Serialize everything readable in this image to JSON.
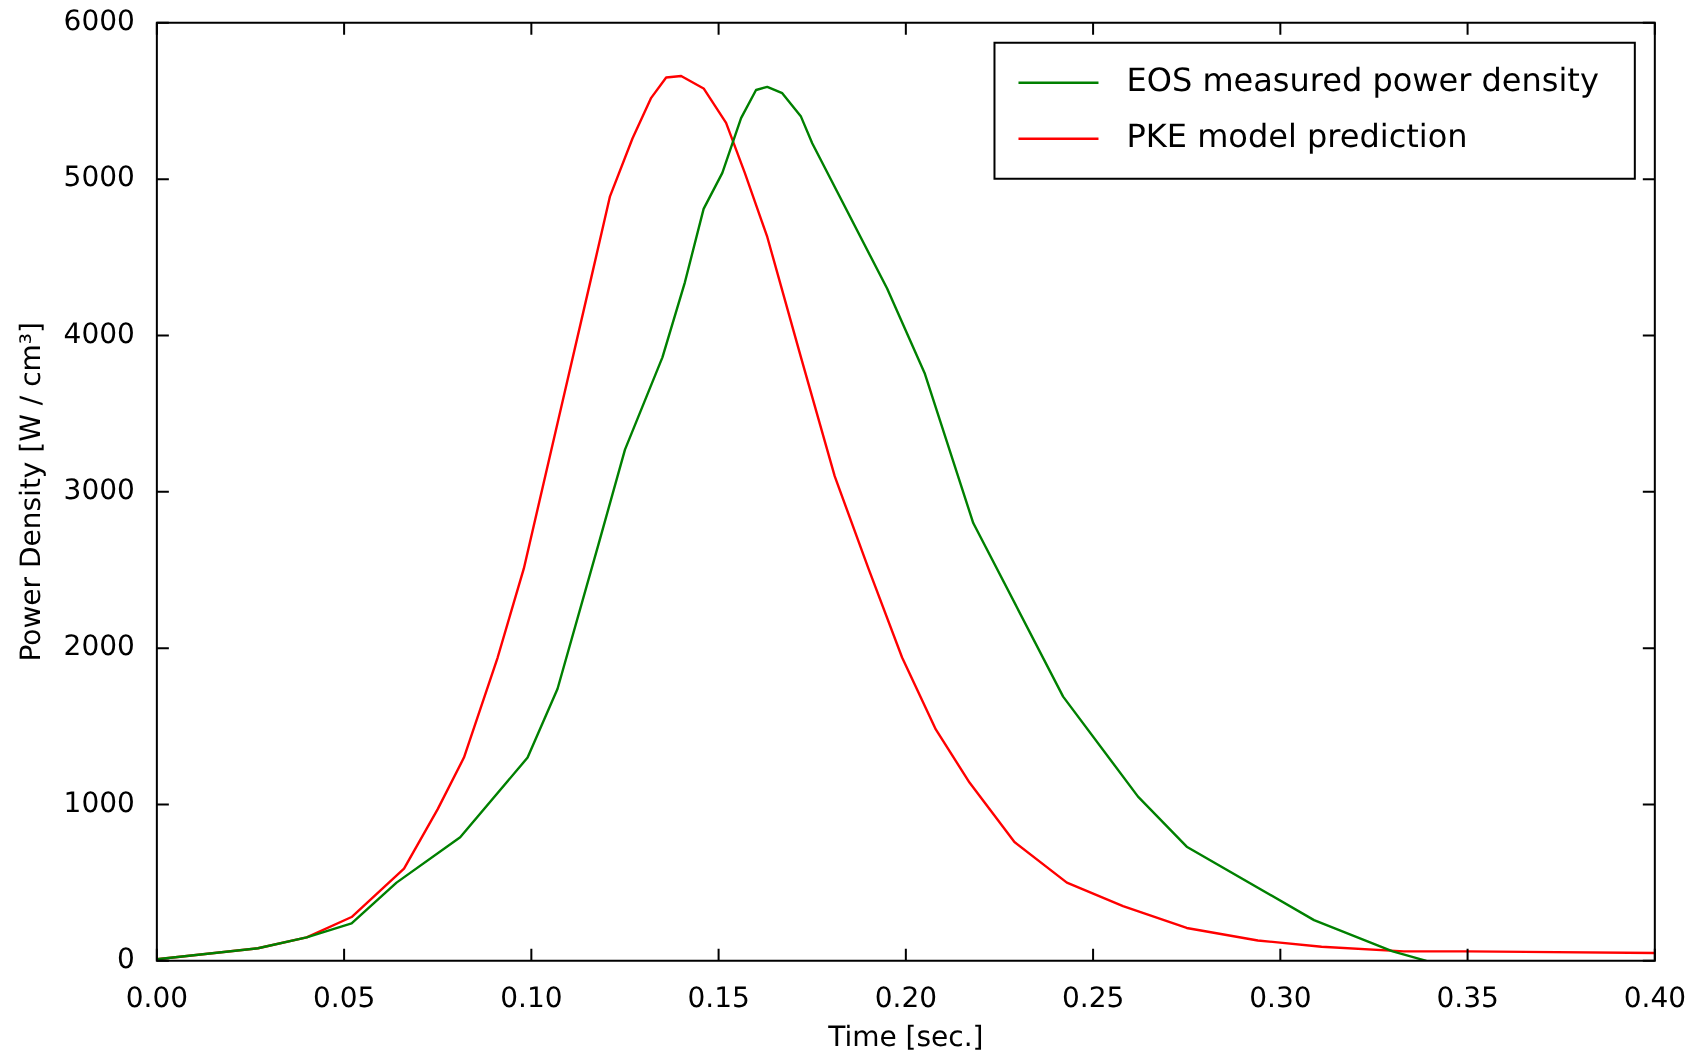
{
  "chart_data": {
    "type": "line",
    "xlabel": "Time [sec.]",
    "ylabel": "Power Density [W / cm³]",
    "xlim": [
      0,
      0.4
    ],
    "xticks": [
      {
        "value": 0,
        "label": "0.00"
      },
      {
        "value": 0.05,
        "label": "0.05"
      },
      {
        "value": 0.1,
        "label": "0.10"
      },
      {
        "value": 0.15,
        "label": "0.15"
      },
      {
        "value": 0.2,
        "label": "0.20"
      },
      {
        "value": 0.25,
        "label": "0.25"
      },
      {
        "value": 0.3,
        "label": "0.30"
      },
      {
        "value": 0.35,
        "label": "0.35"
      },
      {
        "value": 0.4,
        "label": "0.40"
      }
    ],
    "ylim": [
      0,
      6000
    ],
    "yticks": [
      0,
      1000,
      2000,
      3000,
      4000,
      5000,
      6000
    ],
    "grid": false,
    "legend": "top right",
    "marker": "none",
    "line_style": "solid",
    "series": [
      {
        "name": "EOS measured power density",
        "color": "#008000",
        "x": [
          0,
          0.027,
          0.04,
          0.052,
          0.064,
          0.081,
          0.099,
          0.107,
          0.118,
          0.125,
          0.135,
          0.141,
          0.146,
          0.151,
          0.156,
          0.16,
          0.163,
          0.167,
          0.172,
          0.175,
          0.195,
          0.205,
          0.218,
          0.242,
          0.262,
          0.275,
          0.309,
          0.33,
          0.339
        ],
        "values": [
          10,
          80,
          150,
          240,
          500,
          790,
          1300,
          1740,
          2670,
          3270,
          3860,
          4340,
          4810,
          5040,
          5390,
          5570,
          5590,
          5550,
          5400,
          5230,
          4300,
          3760,
          2800,
          1690,
          1050,
          730,
          260,
          60,
          0
        ]
      },
      {
        "name": "PKE model prediction",
        "color": "#ff0000",
        "x": [
          0,
          0.027,
          0.04,
          0.052,
          0.066,
          0.075,
          0.082,
          0.091,
          0.098,
          0.107,
          0.116,
          0.121,
          0.127,
          0.132,
          0.136,
          0.14,
          0.146,
          0.152,
          0.157,
          0.163,
          0.172,
          0.181,
          0.19,
          0.199,
          0.208,
          0.217,
          0.229,
          0.243,
          0.258,
          0.275,
          0.294,
          0.311,
          0.333,
          0.35,
          0.4
        ],
        "values": [
          10,
          80,
          150,
          280,
          590,
          970,
          1300,
          1940,
          2510,
          3440,
          4370,
          4890,
          5260,
          5520,
          5650,
          5660,
          5580,
          5360,
          5040,
          4630,
          3860,
          3100,
          2510,
          1940,
          1480,
          1140,
          760,
          500,
          350,
          210,
          130,
          90,
          60,
          60,
          50
        ]
      }
    ]
  }
}
